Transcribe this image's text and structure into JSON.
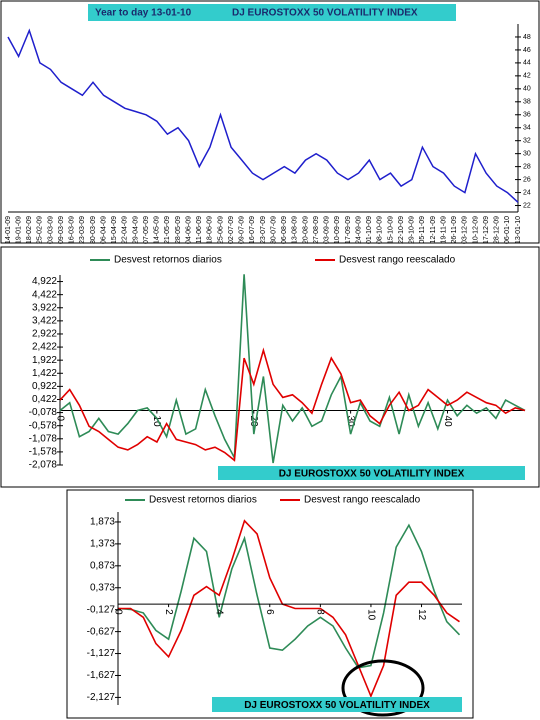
{
  "chart_data": [
    {
      "type": "line",
      "title": "Year to day  13-01-10",
      "subtitle": "DJ EUROSTOXX 50 VOLATILITY INDEX",
      "color": "#1f1fcc",
      "categories": [
        "14-01-09",
        "19-01-09",
        "18-02-09",
        "25-02-09",
        "03-03-09",
        "09-03-09",
        "16-03-09",
        "23-03-09",
        "30-03-09",
        "06-04-09",
        "15-04-09",
        "22-04-09",
        "29-04-09",
        "07-05-09",
        "14-05-09",
        "21-05-09",
        "28-05-09",
        "04-06-09",
        "11-06-09",
        "18-06-09",
        "25-06-09",
        "02-07-09",
        "09-07-09",
        "16-07-09",
        "23-07-09",
        "30-07-09",
        "06-08-09",
        "13-08-09",
        "20-08-09",
        "27-08-09",
        "03-09-09",
        "10-09-09",
        "17-09-09",
        "24-09-09",
        "01-10-09",
        "08-10-09",
        "15-10-09",
        "22-10-09",
        "29-10-09",
        "05-11-09",
        "12-11-09",
        "19-11-09",
        "26-11-09",
        "03-12-09",
        "10-12-09",
        "17-12-09",
        "28-12-09",
        "06-01-10",
        "13-01-10"
      ],
      "values": [
        48,
        45,
        49,
        44,
        43,
        41,
        40,
        39,
        41,
        39,
        38,
        37,
        36.5,
        36,
        35,
        33,
        34,
        32,
        28,
        31,
        36,
        31,
        29,
        27,
        26,
        27,
        28,
        27,
        29,
        30,
        29,
        27,
        26,
        27,
        29,
        26,
        27,
        25,
        26,
        31,
        28,
        27,
        25,
        24,
        30,
        27,
        25,
        24,
        22.5
      ],
      "ylim": [
        21,
        50
      ],
      "yticks": [
        22,
        24,
        26,
        28,
        30,
        32,
        34,
        36,
        38,
        40,
        42,
        44,
        46,
        48
      ]
    },
    {
      "type": "line",
      "annotation": "DJ EUROSTOXX 50 VOLATILITY INDEX",
      "x": [
        0,
        1,
        2,
        3,
        4,
        5,
        6,
        7,
        8,
        9,
        10,
        11,
        12,
        13,
        14,
        15,
        16,
        17,
        18,
        19,
        20,
        21,
        22,
        23,
        24,
        25,
        26,
        27,
        28,
        29,
        30,
        31,
        32,
        33,
        34,
        35,
        36,
        37,
        38,
        39,
        40,
        41,
        42,
        43,
        44,
        45,
        46,
        47,
        48
      ],
      "series": [
        {
          "name": "Desvest retornos diarios",
          "color": "#2e8b57",
          "values": [
            0,
            0.3,
            -1.0,
            -0.8,
            -0.3,
            -0.8,
            -0.9,
            -0.5,
            0,
            0.1,
            -0.3,
            -1.0,
            0.4,
            -0.9,
            -0.7,
            0.8,
            -0.2,
            -1.1,
            -1.8,
            5.2,
            -0.9,
            1.3,
            -2.0,
            0.2,
            -0.4,
            0.1,
            -0.6,
            -0.4,
            0.6,
            1.3,
            -0.9,
            0.3,
            -0.4,
            -0.6,
            0.5,
            -0.9,
            0.6,
            -0.6,
            0.3,
            -0.7,
            0.4,
            -0.2,
            0.2,
            -0.1,
            0.1,
            -0.3,
            0.4,
            0.2,
            0
          ]
        },
        {
          "name": "Desvest rango reescalado",
          "color": "#e00000",
          "values": [
            0.4,
            0.8,
            0.2,
            -0.6,
            -0.8,
            -1.1,
            -1.4,
            -1.5,
            -1.3,
            -1.0,
            -1.2,
            -0.5,
            -1.1,
            -1.2,
            -1.3,
            -1.5,
            -1.4,
            -1.6,
            -1.9,
            2.0,
            1.0,
            2.3,
            1.0,
            0.5,
            0.6,
            0.3,
            -0.1,
            1.0,
            2.0,
            1.4,
            0.3,
            0.4,
            -0.2,
            -0.5,
            0.2,
            0.7,
            0,
            0.2,
            0.8,
            0.5,
            0.2,
            0.4,
            0.7,
            0.5,
            0.3,
            0.2,
            -0.1,
            0.1,
            0
          ]
        }
      ],
      "xlim": [
        0,
        48
      ],
      "xticks": [
        0,
        10,
        20,
        30,
        40
      ],
      "ylim": [
        -2.078,
        5.172
      ],
      "yticks": [
        {
          "value": 4.922,
          "label": "4,922"
        },
        {
          "value": 4.422,
          "label": "4,422"
        },
        {
          "value": 3.922,
          "label": "3,922"
        },
        {
          "value": 3.422,
          "label": "3,422"
        },
        {
          "value": 2.922,
          "label": "2,922"
        },
        {
          "value": 2.422,
          "label": "2,422"
        },
        {
          "value": 1.922,
          "label": "1,922"
        },
        {
          "value": 1.422,
          "label": "1,422"
        },
        {
          "value": 0.922,
          "label": "0,922"
        },
        {
          "value": 0.422,
          "label": "0,422"
        },
        {
          "value": -0.078,
          "label": "-0,078"
        },
        {
          "value": -0.578,
          "label": "-0,578"
        },
        {
          "value": -1.078,
          "label": "-1,078"
        },
        {
          "value": -1.578,
          "label": "-1,578"
        },
        {
          "value": -2.078,
          "label": "-2,078"
        }
      ]
    },
    {
      "type": "line",
      "annotation": "DJ EUROSTOXX 50 VOLATILITY INDEX",
      "x": [
        0,
        0.5,
        1,
        1.5,
        2,
        2.5,
        3,
        3.5,
        4,
        4.5,
        5,
        5.5,
        6,
        6.5,
        7,
        7.5,
        8,
        8.5,
        9,
        9.5,
        10,
        10.5,
        11,
        11.5,
        12,
        12.5,
        13,
        13.5
      ],
      "series": [
        {
          "name": "Desvest retornos diarios",
          "color": "#2e8b57",
          "values": [
            -0.1,
            -0.12,
            -0.2,
            -0.6,
            -0.8,
            0.3,
            1.5,
            1.2,
            -0.3,
            0.8,
            1.5,
            0.2,
            -1.0,
            -1.05,
            -0.8,
            -0.5,
            -0.3,
            -0.5,
            -1.0,
            -1.45,
            -1.4,
            -0.2,
            1.3,
            1.8,
            1.2,
            0.3,
            -0.4,
            -0.7
          ]
        },
        {
          "name": "Desvest rango reescalado",
          "color": "#e00000",
          "values": [
            -0.1,
            -0.1,
            -0.3,
            -0.9,
            -1.2,
            -0.6,
            0.2,
            0.4,
            0.2,
            1.0,
            1.9,
            1.6,
            0.6,
            0,
            -0.1,
            -0.1,
            -0.1,
            -0.3,
            -0.7,
            -1.4,
            -2.1,
            -1.4,
            0.2,
            0.5,
            0.5,
            0.2,
            -0.2,
            -0.4
          ]
        }
      ],
      "xlim": [
        0,
        13.6
      ],
      "xticks": [
        0,
        2,
        4,
        6,
        8,
        10,
        12
      ],
      "ylim": [
        -2.3,
        2.1
      ],
      "yticks": [
        {
          "value": 1.873,
          "label": "1,873"
        },
        {
          "value": 1.373,
          "label": "1,373"
        },
        {
          "value": 0.873,
          "label": "0,873"
        },
        {
          "value": 0.373,
          "label": "0,373"
        },
        {
          "value": -0.127,
          "label": "-0,127"
        },
        {
          "value": -0.627,
          "label": "-0,627"
        },
        {
          "value": -1.127,
          "label": "-1,127"
        },
        {
          "value": -1.627,
          "label": "-1,627"
        },
        {
          "value": -2.127,
          "label": "-2,127"
        }
      ]
    }
  ]
}
